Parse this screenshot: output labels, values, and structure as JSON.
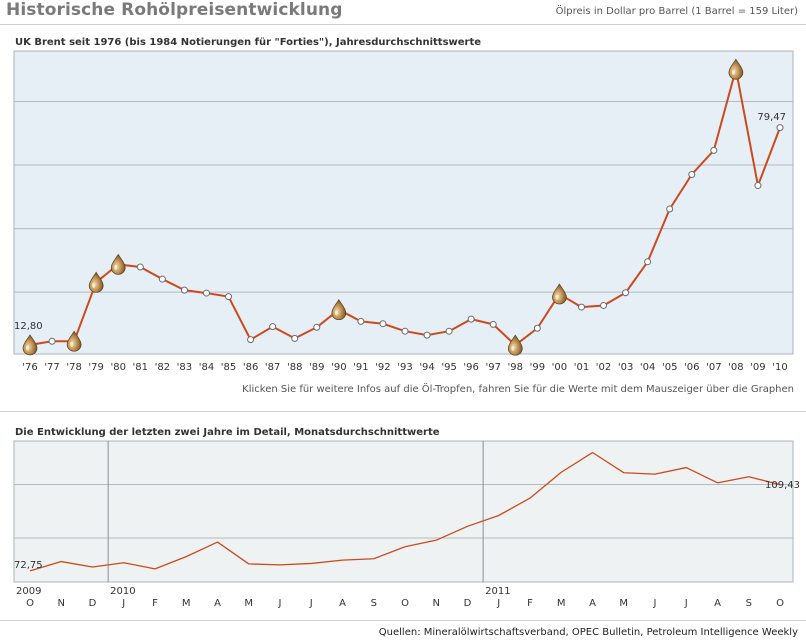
{
  "header": {
    "title": "Historische Rohölpreisentwicklung",
    "subtitle": "Ölpreis in Dollar pro Barrel (1 Barrel = 159 Liter)"
  },
  "note": "Klicken Sie für weitere Infos auf die Öl-Tropfen, fahren Sie für die Werte mit dem Mauszeiger über die Graphen",
  "footer": {
    "source": "Quellen: Mineralölwirtschaftsverband, OPEC Bulletin, Petroleum Intelligence Weekly"
  },
  "colors": {
    "line": "#cc4a1c",
    "plotBg1": "#e6eef6",
    "plotBg2": "#eef2f2",
    "grid": "#b4bac0",
    "drop": "#b88a4a"
  },
  "chart_data": [
    {
      "type": "line",
      "title": "UK Brent seit 1976 (bis 1984 Notierungen für \"Forties\"), Jahresdurchschnittswerte",
      "categories": [
        "'76",
        "'77",
        "'78",
        "'79",
        "'80",
        "'81",
        "'82",
        "'83",
        "'84",
        "'85",
        "'86",
        "'87",
        "'88",
        "'89",
        "'90",
        "'91",
        "'92",
        "'93",
        "'94",
        "'95",
        "'96",
        "'97",
        "'98",
        "'99",
        "'00",
        "'01",
        "'02",
        "'03",
        "'04",
        "'05",
        "'06",
        "'07",
        "'08",
        "'09",
        "'10"
      ],
      "values": [
        12.8,
        13.9,
        13.9,
        32.0,
        37.5,
        36.7,
        33.0,
        29.6,
        28.7,
        27.6,
        14.4,
        18.4,
        14.8,
        18.2,
        23.6,
        20.0,
        19.3,
        17.0,
        15.8,
        17.0,
        20.7,
        19.1,
        12.7,
        17.9,
        28.4,
        24.4,
        24.9,
        28.8,
        38.3,
        54.5,
        65.1,
        72.5,
        97.4,
        61.7,
        79.47
      ],
      "drop_markers": [
        "'76",
        "'78",
        "'79",
        "'80",
        "'90",
        "'98",
        "'00",
        "'08"
      ],
      "labels": {
        "first": "12,80",
        "last": "79,47"
      },
      "ylim": [
        10,
        103
      ],
      "gridlines": [
        29.0,
        48.5,
        68.0,
        87.5
      ]
    },
    {
      "type": "line",
      "title": "Die Entwicklung der letzten zwei Jahre im Detail, Monatsdurchschnittwerte",
      "months": [
        "O",
        "N",
        "D",
        "J",
        "F",
        "M",
        "A",
        "M",
        "J",
        "J",
        "A",
        "S",
        "O",
        "N",
        "D",
        "J",
        "F",
        "M",
        "A",
        "M",
        "J",
        "J",
        "A",
        "S",
        "O"
      ],
      "years": [
        {
          "label": "2009",
          "index": 0,
          "separator": false
        },
        {
          "label": "2010",
          "index": 3,
          "separator": true
        },
        {
          "label": "2011",
          "index": 15,
          "separator": true
        }
      ],
      "values": [
        72.75,
        76.7,
        74.4,
        76.2,
        73.6,
        78.8,
        85.0,
        75.7,
        75.3,
        75.9,
        77.3,
        77.9,
        83.0,
        85.8,
        91.7,
        96.3,
        103.7,
        114.7,
        123.1,
        114.5,
        113.9,
        116.7,
        110.2,
        112.8,
        109.43
      ],
      "labels": {
        "first": "72,75",
        "last": "109,43"
      },
      "ylim": [
        68,
        128
      ],
      "gridlines": [
        86.7,
        109.5
      ]
    }
  ]
}
